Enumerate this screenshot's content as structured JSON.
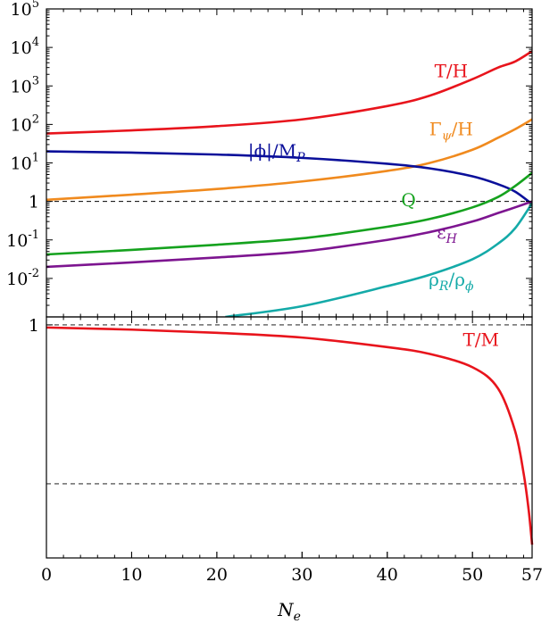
{
  "chart_data": [
    {
      "type": "line",
      "panel": "top",
      "yscale": "log",
      "xlim": [
        0,
        57
      ],
      "ylim": [
        0.001,
        100000
      ],
      "yticks": [
        {
          "value": 100000,
          "base": "10",
          "exp": "5"
        },
        {
          "value": 10000,
          "base": "10",
          "exp": "4"
        },
        {
          "value": 1000,
          "base": "10",
          "exp": "3"
        },
        {
          "value": 100,
          "base": "10",
          "exp": "2"
        },
        {
          "value": 10,
          "base": "10",
          "exp": "1"
        },
        {
          "value": 1,
          "base": "1",
          "exp": ""
        },
        {
          "value": 0.1,
          "base": "10",
          "exp": "-1"
        },
        {
          "value": 0.01,
          "base": "10",
          "exp": "-2"
        }
      ],
      "hlines": [
        1
      ],
      "series": [
        {
          "name": "T/H",
          "color": "#e8141c",
          "label_at": [
            47.5,
            1700
          ],
          "x": [
            0,
            10,
            20,
            30,
            40,
            45,
            50,
            53,
            55,
            57
          ],
          "y": [
            58,
            70,
            90,
            135,
            300,
            560,
            1500,
            3000,
            4300,
            8000
          ]
        },
        {
          "name": "Γ_ψ/H",
          "color": "#f08a1e",
          "label_at": [
            47.5,
            52
          ],
          "x": [
            0,
            10,
            20,
            30,
            40,
            45,
            50,
            53,
            55,
            57
          ],
          "y": [
            1.1,
            1.5,
            2.1,
            3.3,
            6.2,
            10,
            22,
            45,
            75,
            135
          ]
        },
        {
          "name": "|ϕ|/M_P",
          "color": "#0a0f9a",
          "label_at": [
            27,
            14
          ],
          "x": [
            0,
            10,
            20,
            30,
            40,
            45,
            50,
            53,
            55,
            57
          ],
          "y": [
            20,
            18.5,
            16.5,
            13.5,
            9.5,
            7.2,
            4.5,
            2.8,
            1.8,
            0.85
          ]
        },
        {
          "name": "Q",
          "color": "#15a21e",
          "label_at": [
            42.5,
            0.75
          ],
          "x": [
            0,
            10,
            20,
            30,
            40,
            45,
            50,
            53,
            55,
            57
          ],
          "y": [
            0.042,
            0.055,
            0.075,
            0.11,
            0.22,
            0.35,
            0.7,
            1.3,
            2.5,
            5.5
          ]
        },
        {
          "name": "ε_H",
          "color": "#7d1590",
          "label_at": [
            47,
            0.11
          ],
          "x": [
            0,
            10,
            20,
            30,
            40,
            45,
            50,
            53,
            55,
            57
          ],
          "y": [
            0.02,
            0.026,
            0.035,
            0.05,
            0.1,
            0.16,
            0.3,
            0.5,
            0.7,
            1.0
          ]
        },
        {
          "name": "ρ_R/ρ_ϕ",
          "color": "#14aaa8",
          "label_at": [
            47.5,
            0.0065
          ],
          "x": [
            21,
            30,
            40,
            45,
            50,
            53,
            55,
            57
          ],
          "y": [
            0.001,
            0.0019,
            0.0063,
            0.0125,
            0.0315,
            0.08,
            0.2,
            0.9
          ]
        }
      ]
    },
    {
      "type": "line",
      "panel": "bottom",
      "xlabel": "N_e",
      "xlim": [
        0,
        57
      ],
      "ylim": [
        0.56,
        1.015
      ],
      "xticks": [
        "0",
        "10",
        "20",
        "30",
        "40",
        "50",
        "57"
      ],
      "yticks": [
        "1"
      ],
      "hlines": [
        1.0,
        0.7
      ],
      "series": [
        {
          "name": "T/M",
          "color": "#e8141c",
          "label_at": [
            51,
            0.96
          ],
          "x": [
            0,
            10,
            20,
            30,
            40,
            45,
            50,
            53,
            55,
            56,
            56.6,
            57
          ],
          "y": [
            0.995,
            0.991,
            0.985,
            0.976,
            0.958,
            0.945,
            0.92,
            0.88,
            0.8,
            0.72,
            0.65,
            0.585
          ]
        }
      ]
    }
  ]
}
